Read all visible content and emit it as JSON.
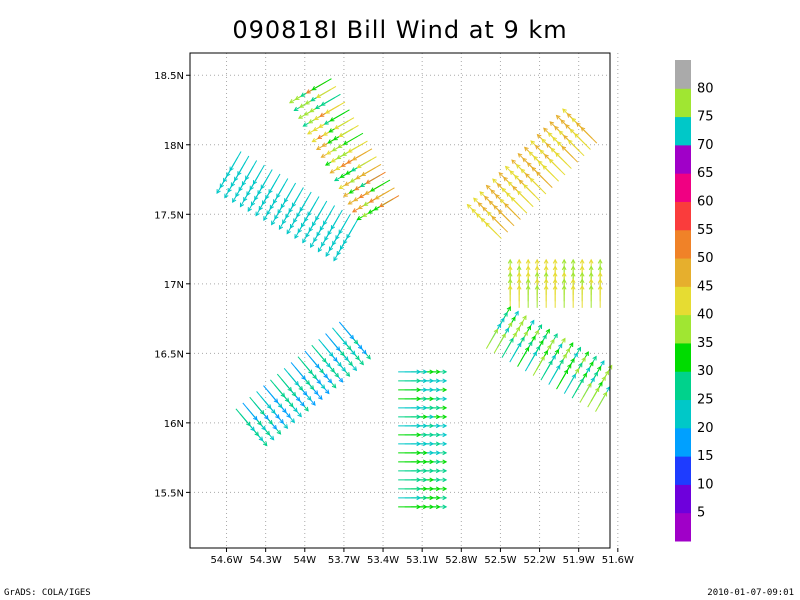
{
  "chart_data": {
    "type": "vector-field",
    "title": "090818I Bill Wind at 9 km",
    "xlabel": "",
    "ylabel": "",
    "x_ticks": [
      "54.6W",
      "54.3W",
      "54W",
      "53.7W",
      "53.4W",
      "53.1W",
      "52.8W",
      "52.5W",
      "52.2W",
      "51.9W",
      "51.6W"
    ],
    "y_ticks": [
      "18.5N",
      "18N",
      "17.5N",
      "17N",
      "16.5N",
      "16N",
      "15.5N"
    ],
    "xlim": [
      -54.88,
      -51.66
    ],
    "ylim": [
      15.1,
      18.66
    ],
    "grid": true,
    "center": {
      "lon": -53.1,
      "lat": 17.0
    },
    "colorbar": {
      "labels": [
        "5",
        "10",
        "15",
        "20",
        "25",
        "30",
        "35",
        "40",
        "45",
        "50",
        "55",
        "60",
        "65",
        "70",
        "75",
        "80"
      ],
      "colors": [
        "#a000c8",
        "#6e00dc",
        "#1e3cff",
        "#00a0ff",
        "#00c8c8",
        "#00d28c",
        "#00dc00",
        "#a0e632",
        "#e6dc32",
        "#e6af2d",
        "#f08228",
        "#fa3c3c",
        "#f00082",
        "#a000c8",
        "#00c8c8",
        "#a0e632",
        "#aaaaaa"
      ]
    },
    "wind_sectors": [
      {
        "direction_deg": 90,
        "speed_range_kt": [
          35,
          45
        ]
      },
      {
        "direction_deg": 45,
        "speed_range_kt": [
          40,
          50
        ]
      },
      {
        "direction_deg": 120,
        "speed_range_kt": [
          20,
          40
        ]
      },
      {
        "direction_deg": 180,
        "speed_range_kt": [
          20,
          35
        ]
      },
      {
        "direction_deg": 230,
        "speed_range_kt": [
          15,
          30
        ]
      },
      {
        "direction_deg": 300,
        "speed_range_kt": [
          20,
          25
        ]
      },
      {
        "direction_deg": 330,
        "speed_range_kt": [
          25,
          55
        ]
      }
    ]
  },
  "footer": {
    "left": "GrADS: COLA/IGES",
    "right": "2010-01-07-09:01"
  }
}
